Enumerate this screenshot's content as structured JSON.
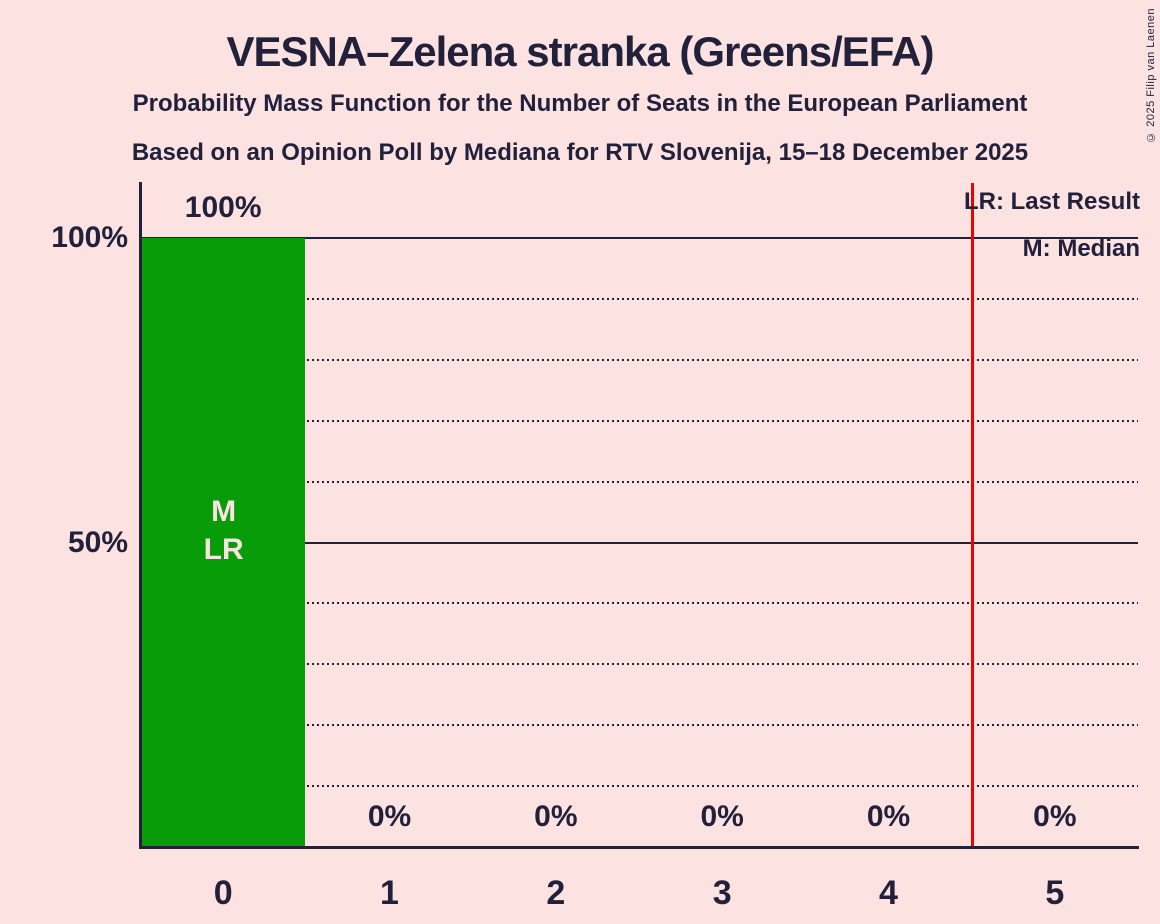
{
  "page": {
    "title": "VESNA–Zelena stranka (Greens/EFA)",
    "subtitle1": "Probability Mass Function for the Number of Seats in the European Parliament",
    "subtitle2": "Based on an Opinion Poll by Mediana for RTV Slovenija, 15–18 December 2025",
    "copyright": "© 2025 Filip van Laenen"
  },
  "legend": {
    "lr": "LR: Last Result",
    "m": "M: Median"
  },
  "chart_data": {
    "type": "bar",
    "categories": [
      "0",
      "1",
      "2",
      "3",
      "4",
      "5"
    ],
    "values": [
      100,
      0,
      0,
      0,
      0,
      0
    ],
    "bar_labels": [
      "100%",
      "0%",
      "0%",
      "0%",
      "0%",
      "0%"
    ],
    "ylim": [
      0,
      100
    ],
    "y_ticks": [
      {
        "value": 100,
        "label": "100%"
      },
      {
        "value": 50,
        "label": "50%"
      }
    ],
    "solid_gridlines": [
      100,
      50
    ],
    "dotted_gridlines": [
      90,
      80,
      70,
      60,
      40,
      30,
      20,
      10
    ],
    "median_seat": 0,
    "last_result_seat": 0,
    "bar_annotation_lines": [
      "M",
      "LR"
    ],
    "red_line_x": 4.5,
    "legend_position": "top-right",
    "colors": {
      "background": "#fde2e2",
      "foreground": "#21213b",
      "bar": "#089c08",
      "bar_text": "#fde2e2",
      "red_line": "#f00000"
    }
  }
}
